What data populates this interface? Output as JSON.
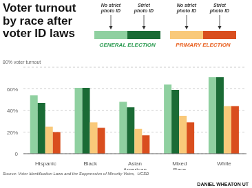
{
  "chart_data": {
    "type": "bar",
    "title": "Voter turnout\nby race after\nvoter ID laws",
    "categories": [
      "Hispanic",
      "Black",
      "Asian\nAmerican",
      "Mixed\nRace",
      "White"
    ],
    "series": [
      {
        "name": "No strict\nphoto ID",
        "color": "#8FD0A0",
        "values": [
          54,
          61,
          48,
          64,
          71
        ]
      },
      {
        "name": "Strict\nphoto ID",
        "color": "#1A6B35",
        "values": [
          47,
          61,
          43,
          59,
          71
        ]
      },
      {
        "name": "No strict\nphoto ID",
        "color": "#F9C97A",
        "values": [
          25,
          29,
          23,
          35,
          44
        ]
      },
      {
        "name": "Strict\nphoto ID",
        "color": "#D94E1E",
        "values": [
          20,
          24,
          17,
          29,
          44
        ]
      }
    ],
    "ylim": [
      0,
      80
    ],
    "yticks": [
      0,
      {
        "value": 20,
        "label": "20%"
      },
      {
        "value": 40,
        "label": "40%"
      },
      {
        "value": 60,
        "label": "60%"
      },
      {
        "value": 80,
        "label": "80% voter turnout"
      }
    ],
    "grid": true,
    "annotations": [
      {
        "text": "GENERAL ELECTION",
        "color": "#2A9A50"
      },
      {
        "text": "PRIMARY ELECTION",
        "color": "#E86020"
      },
      {
        "text": "Source: Voter Identification Laws and the Suppression of Minority Votes,  UCSD"
      },
      {
        "text": "DANIEL WHEATON UT"
      }
    ]
  }
}
